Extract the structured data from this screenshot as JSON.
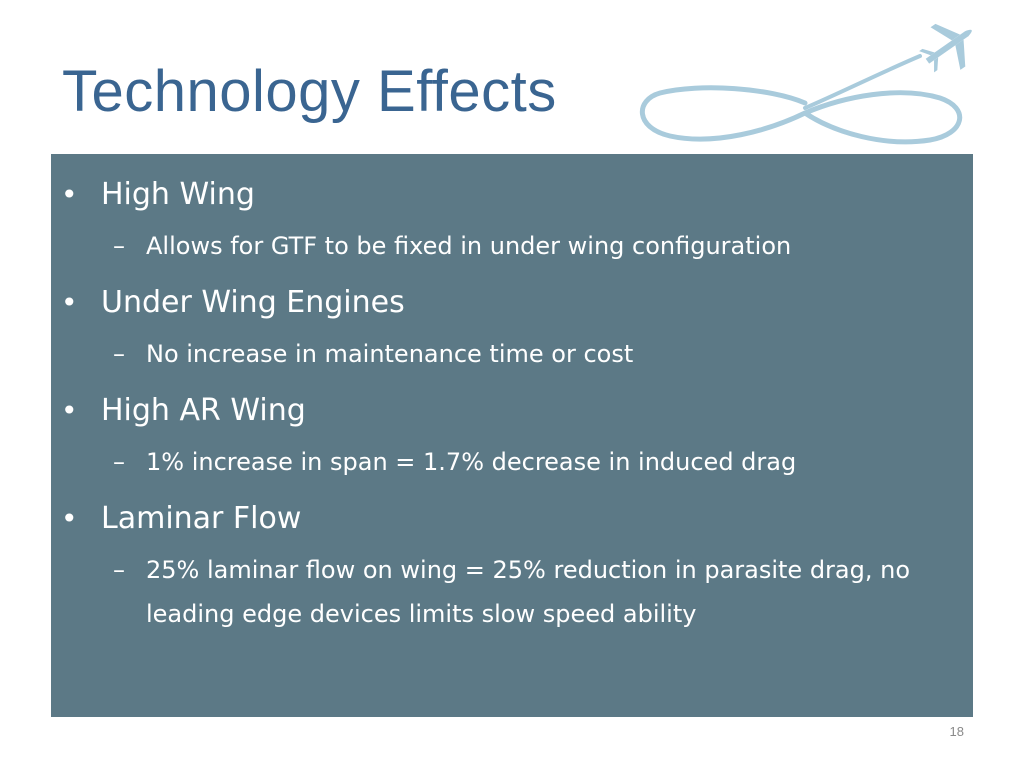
{
  "slide": {
    "title": "Technology Effects",
    "page_number": "18",
    "colors": {
      "title": "#3a6591",
      "content_background": "#5c7986",
      "content_text": "#ffffff",
      "logo": "#a9cbdc"
    },
    "logo_icon": "airplane-infinity-trail-icon",
    "bullets": [
      {
        "marker": "•",
        "text": "High Wing",
        "subs": [
          {
            "marker": "–",
            "text": "Allows for GTF to be fixed in under wing configuration"
          }
        ]
      },
      {
        "marker": "•",
        "text": "Under Wing Engines",
        "subs": [
          {
            "marker": "–",
            "text": "No increase in maintenance time or cost"
          }
        ]
      },
      {
        "marker": "•",
        "text": "High AR Wing",
        "subs": [
          {
            "marker": "–",
            "text": "1% increase in span = 1.7% decrease in induced drag"
          }
        ]
      },
      {
        "marker": "•",
        "text": "Laminar Flow",
        "subs": [
          {
            "marker": "–",
            "text": "25% laminar flow on wing = 25% reduction in parasite drag, no leading edge devices limits slow speed ability"
          }
        ]
      }
    ]
  }
}
